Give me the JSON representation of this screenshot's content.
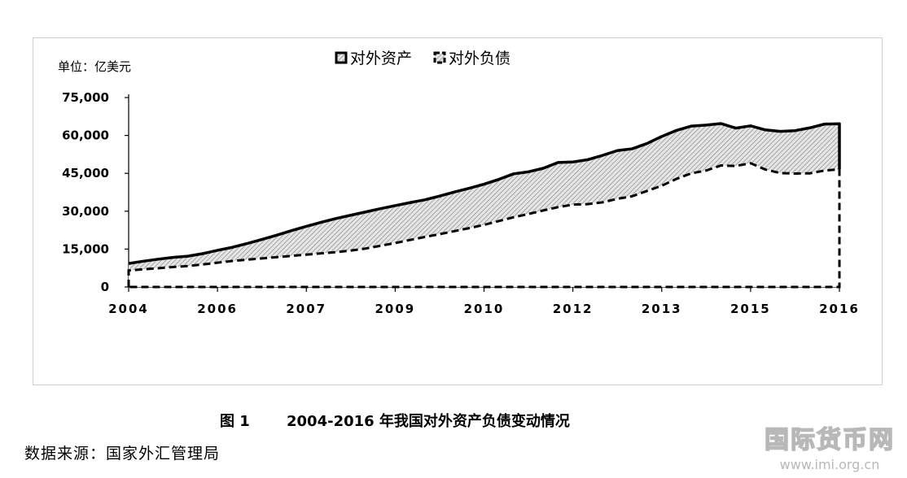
{
  "chart_data": {
    "type": "area",
    "unit_label": "单位：亿美元",
    "x_tick_labels": [
      "2004",
      "2006",
      "2007",
      "2009",
      "2010",
      "2012",
      "2013",
      "2015",
      "2016"
    ],
    "y_ticks": [
      0,
      15000,
      30000,
      45000,
      60000,
      75000
    ],
    "y_tick_labels": [
      "0",
      "15,000",
      "30,000",
      "45,000",
      "60,000",
      "75,000"
    ],
    "ylim": [
      0,
      75000
    ],
    "legend_position": "top-center",
    "series": [
      {
        "name": "对外资产",
        "line_style": "solid",
        "values": [
          9300,
          10200,
          11000,
          11700,
          12200,
          13200,
          14500,
          15700,
          17200,
          18800,
          20500,
          22300,
          24000,
          25600,
          27100,
          28400,
          29700,
          31000,
          32200,
          33400,
          34500,
          36000,
          37600,
          39100,
          40700,
          42600,
          44800,
          45600,
          47000,
          49300,
          49500,
          50400,
          52100,
          54000,
          54700,
          56800,
          59600,
          62000,
          63700,
          64100,
          64700,
          62900,
          63800,
          62200,
          61600,
          61900,
          63000,
          64500,
          64600
        ]
      },
      {
        "name": "对外负债",
        "line_style": "dashed",
        "values": [
          6500,
          7000,
          7400,
          7900,
          8300,
          8900,
          9600,
          10300,
          10800,
          11300,
          11800,
          12300,
          12800,
          13300,
          13800,
          14400,
          15200,
          16300,
          17400,
          18600,
          19800,
          20900,
          22100,
          23300,
          24600,
          26100,
          27600,
          28900,
          30300,
          31600,
          32600,
          32800,
          33500,
          34900,
          35900,
          38000,
          40100,
          42800,
          45000,
          46100,
          48100,
          47900,
          49000,
          46500,
          45100,
          44900,
          45000,
          46100,
          46600
        ]
      }
    ]
  },
  "caption": {
    "number": "图 1",
    "title": "2004-2016 年我国对外资产负债变动情况"
  },
  "source": "数据来源：国家外汇管理局",
  "watermark": {
    "text": "国际货币网",
    "url": "www.imi.org.cn"
  },
  "colors": {
    "frame_border": "#d0d0d0",
    "fill_hatch_bg": "#e6e6e6",
    "hatch_line": "#8a8a8a",
    "line": "#000000",
    "watermark": "#b8b8b8"
  }
}
